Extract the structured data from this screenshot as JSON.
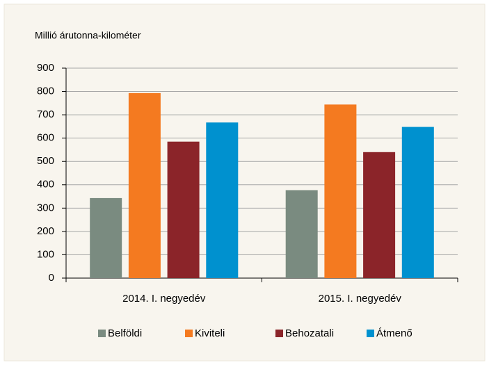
{
  "chart_data": {
    "type": "bar",
    "y_axis_label": "Millió árutonna-kilométer",
    "categories": [
      "2014. I. negyedév",
      "2015. I. negyedév"
    ],
    "series": [
      {
        "name": "Belföldi",
        "color": "#7a8b80",
        "values": [
          343,
          377
        ]
      },
      {
        "name": "Kiviteli",
        "color": "#f47a20",
        "values": [
          793,
          744
        ]
      },
      {
        "name": "Behozatali",
        "color": "#8b2429",
        "values": [
          585,
          540
        ]
      },
      {
        "name": "Átmenő",
        "color": "#0091cf",
        "values": [
          667,
          648
        ]
      }
    ],
    "ylim": [
      0,
      900
    ],
    "yticks": [
      0,
      100,
      200,
      300,
      400,
      500,
      600,
      700,
      800,
      900
    ],
    "grid": true,
    "legend": "bottom"
  }
}
